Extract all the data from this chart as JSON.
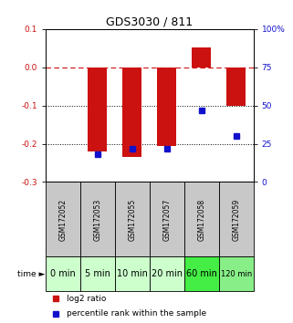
{
  "title": "GDS3030 / 811",
  "samples": [
    "GSM172052",
    "GSM172053",
    "GSM172055",
    "GSM172057",
    "GSM172058",
    "GSM172059"
  ],
  "time_labels": [
    "0 min",
    "5 min",
    "10 min",
    "20 min",
    "60 min",
    "120 min"
  ],
  "log2_ratio": [
    0.0,
    -0.22,
    -0.235,
    -0.205,
    0.052,
    -0.1
  ],
  "percentile_rank": [
    null,
    18,
    22,
    22,
    47,
    30
  ],
  "ylim_left": [
    -0.3,
    0.1
  ],
  "ylim_right": [
    0,
    100
  ],
  "yticks_left": [
    0.1,
    0.0,
    -0.1,
    -0.2,
    -0.3
  ],
  "yticks_right": [
    100,
    75,
    50,
    25,
    0
  ],
  "bar_color": "#cc1111",
  "dot_color": "#1111cc",
  "hline_y": 0.0,
  "dotted_lines": [
    -0.1,
    -0.2
  ],
  "bar_width": 0.55,
  "background_color": "#ffffff",
  "time_bg_colors": [
    "#ccffcc",
    "#ccffcc",
    "#ccffcc",
    "#ccffcc",
    "#44ee44",
    "#88ee88"
  ],
  "sample_bg_color": "#c8c8c8",
  "time_label_fontsize": [
    7,
    7,
    7,
    7,
    7,
    6
  ],
  "sample_label_fontsize": 5.5,
  "legend_fontsize": 6.5,
  "title_fontsize": 9
}
